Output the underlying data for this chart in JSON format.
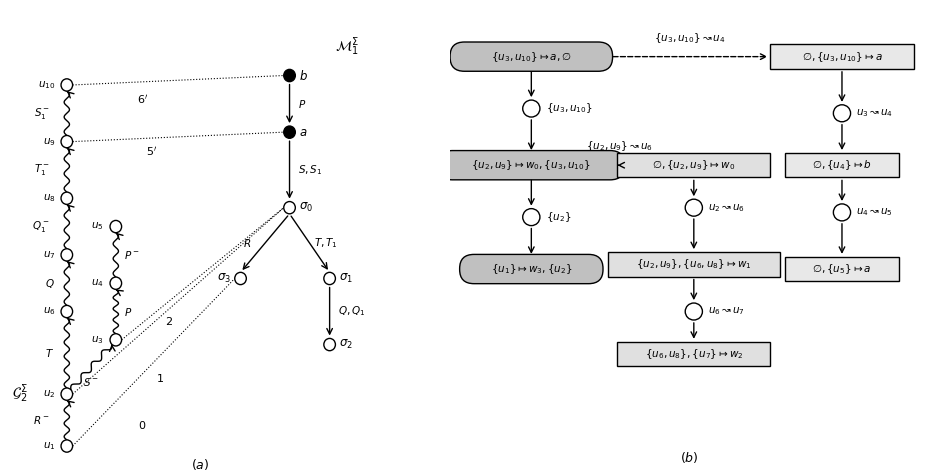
{
  "fig_width": 9.28,
  "fig_height": 4.72,
  "bg_color": "#ffffff"
}
